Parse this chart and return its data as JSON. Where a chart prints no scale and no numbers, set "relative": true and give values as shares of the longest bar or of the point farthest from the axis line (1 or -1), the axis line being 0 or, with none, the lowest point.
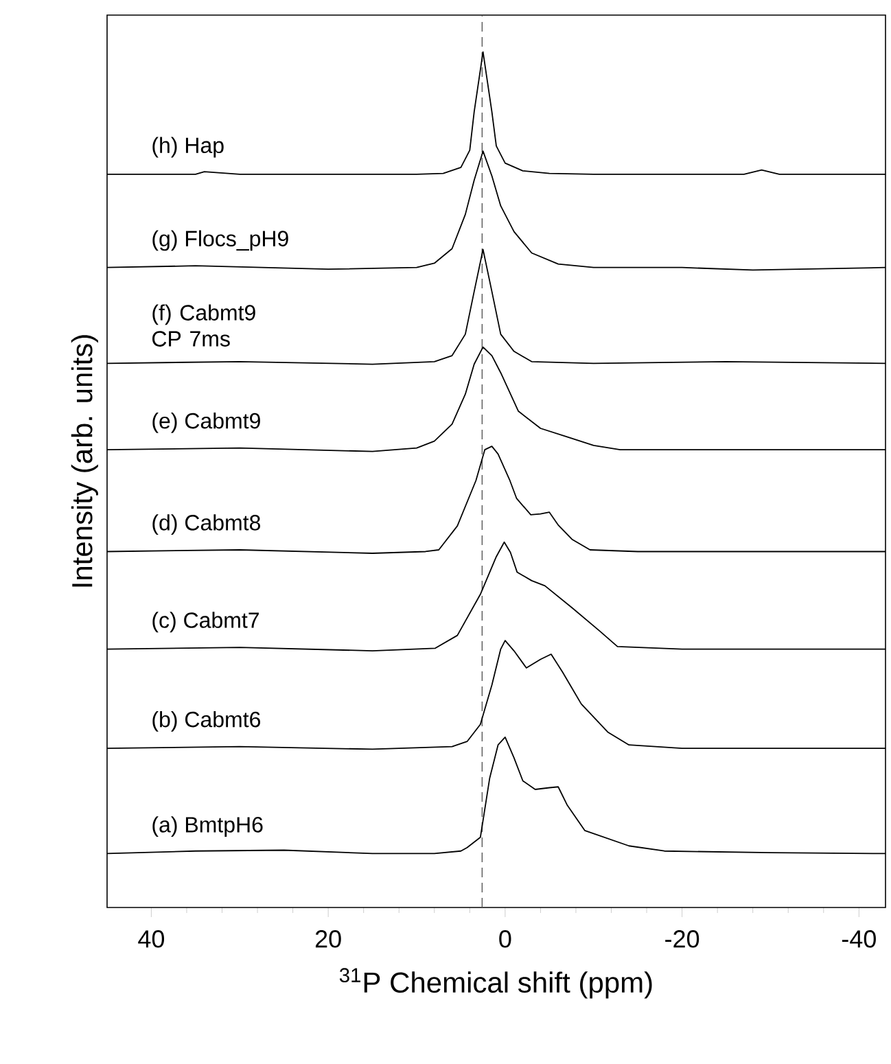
{
  "chart_data": {
    "type": "line",
    "relative": true,
    "xlabel": "$^{31}$P Chemical shift (ppm)",
    "ylabel": "Intensity (arb. units)",
    "xlim": [
      45,
      -43
    ],
    "xticks": [
      40,
      20,
      0,
      -20,
      -40
    ],
    "legend": false,
    "marker": "none",
    "line_style": "solid",
    "ref_lines": [
      {
        "axis": "x",
        "value": 2.6,
        "color": "#555555",
        "line_style": "dashed"
      }
    ],
    "series": [
      {
        "name": "(h) Hap",
        "color": "#000000",
        "x": [
          45,
          35,
          34,
          30,
          20,
          10,
          7,
          5,
          4,
          3.5,
          2.5,
          1.5,
          1,
          0,
          -2,
          -5,
          -10,
          -20,
          -27,
          -29,
          -31,
          -35,
          -43
        ],
        "values": [
          0.857,
          0.857,
          0.86,
          0.857,
          0.857,
          0.857,
          0.858,
          0.865,
          0.885,
          0.93,
          1.0,
          0.93,
          0.89,
          0.87,
          0.861,
          0.858,
          0.857,
          0.857,
          0.857,
          0.862,
          0.857,
          0.857,
          0.857
        ]
      },
      {
        "name": "(g) Flocs_pH9",
        "color": "#000000",
        "x": [
          45,
          35,
          20,
          10,
          8,
          6,
          4.5,
          3.5,
          2.5,
          1.5,
          0.5,
          -1,
          -3,
          -6,
          -10,
          -20,
          -28,
          -43
        ],
        "values": [
          0.748,
          0.75,
          0.746,
          0.748,
          0.753,
          0.77,
          0.81,
          0.85,
          0.884,
          0.855,
          0.82,
          0.79,
          0.765,
          0.752,
          0.748,
          0.748,
          0.745,
          0.748
        ]
      },
      {
        "name": "(f) Cabmt9 CP 7ms",
        "color": "#000000",
        "x": [
          45,
          30,
          15,
          8,
          6,
          4.5,
          3.5,
          2.5,
          1.5,
          0.5,
          -1,
          -3,
          -10,
          -25,
          -43
        ],
        "values": [
          0.636,
          0.638,
          0.635,
          0.638,
          0.645,
          0.67,
          0.72,
          0.769,
          0.72,
          0.67,
          0.65,
          0.638,
          0.636,
          0.638,
          0.636
        ]
      },
      {
        "name": "(e) Cabmt9",
        "color": "#000000",
        "x": [
          45,
          30,
          15,
          10,
          8,
          6,
          4.5,
          3.5,
          2.5,
          1.5,
          0.5,
          -1.5,
          -4,
          -7,
          -10,
          -13,
          -25,
          -43
        ],
        "values": [
          0.535,
          0.537,
          0.533,
          0.537,
          0.545,
          0.565,
          0.6,
          0.635,
          0.655,
          0.645,
          0.625,
          0.58,
          0.56,
          0.55,
          0.54,
          0.535,
          0.535,
          0.535
        ]
      },
      {
        "name": "(d) Cabmt8",
        "color": "#000000",
        "x": [
          45,
          30,
          15,
          9,
          7.5,
          5.4,
          3.3,
          2.3,
          1.5,
          0.8,
          -0.5,
          -1.3,
          -2.9,
          -4,
          -5,
          -6,
          -7.6,
          -9.6,
          -15,
          -25,
          -43
        ],
        "values": [
          0.416,
          0.418,
          0.414,
          0.416,
          0.418,
          0.446,
          0.499,
          0.535,
          0.539,
          0.53,
          0.5,
          0.478,
          0.459,
          0.46,
          0.462,
          0.447,
          0.43,
          0.418,
          0.416,
          0.416,
          0.416
        ]
      },
      {
        "name": "(c) Cabmt7",
        "color": "#000000",
        "x": [
          45,
          30,
          15,
          7.9,
          5.4,
          2.8,
          1,
          0.1,
          -0.6,
          -1.35,
          -3,
          -4.5,
          -7.6,
          -10.7,
          -12.7,
          -20,
          -30,
          -43
        ],
        "values": [
          0.302,
          0.304,
          0.3,
          0.303,
          0.318,
          0.366,
          0.41,
          0.427,
          0.415,
          0.392,
          0.382,
          0.376,
          0.35,
          0.323,
          0.305,
          0.302,
          0.302,
          0.302
        ]
      },
      {
        "name": "(b) Cabmt6",
        "color": "#000000",
        "x": [
          45,
          30,
          15,
          6,
          4.3,
          2.8,
          1.5,
          0.5,
          0,
          -1,
          -2.4,
          -4,
          -5.2,
          -6.5,
          -8.6,
          -11.6,
          -14,
          -20,
          -30,
          -43
        ],
        "values": [
          0.186,
          0.188,
          0.185,
          0.188,
          0.194,
          0.214,
          0.26,
          0.302,
          0.312,
          0.3,
          0.28,
          0.29,
          0.296,
          0.275,
          0.238,
          0.205,
          0.19,
          0.186,
          0.186,
          0.186
        ]
      },
      {
        "name": "(a) BmtpH6",
        "color": "#000000",
        "x": [
          45,
          35,
          25,
          15,
          8,
          5,
          4.3,
          2.8,
          1.75,
          0.8,
          0,
          -1,
          -2,
          -3.4,
          -5,
          -6,
          -7,
          -9,
          -14,
          -18,
          -30,
          -43
        ],
        "values": [
          0.063,
          0.066,
          0.067,
          0.063,
          0.063,
          0.066,
          0.07,
          0.082,
          0.151,
          0.19,
          0.199,
          0.175,
          0.148,
          0.138,
          0.14,
          0.141,
          0.12,
          0.09,
          0.072,
          0.066,
          0.064,
          0.063
        ]
      }
    ]
  }
}
